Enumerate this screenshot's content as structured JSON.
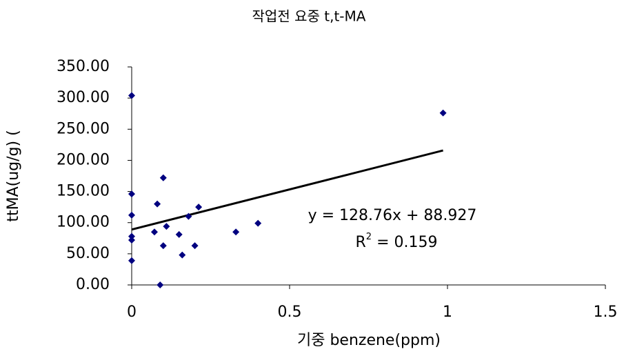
{
  "chart_data": {
    "type": "scatter",
    "title": "작업전 요중 t,t-MA",
    "x_label": "기중  benzene(ppm)",
    "y_label": "ttMA(ug/g) (",
    "series": [
      {
        "color": "#000080",
        "x": [
          0,
          0.986,
          0,
          0.1,
          0,
          0.081,
          0.212,
          0.18,
          0.11,
          0.072,
          0.15,
          0,
          0,
          0.1,
          0.2,
          0.16,
          0,
          0.09,
          0.33,
          0.4
        ],
        "values": [
          304,
          276,
          146,
          172,
          112,
          130,
          125,
          110,
          94,
          85,
          81,
          78,
          72,
          63,
          63,
          48,
          39,
          0,
          85,
          99
        ]
      }
    ],
    "trendline": {
      "slope": 128.76,
      "intercept": 88.927,
      "color": "#000000",
      "equation": "y = 128.76x + 88.927",
      "r2_label": {
        "base": "R",
        "sup": "2",
        "rest": " = 0.159"
      }
    },
    "xlim": [
      0,
      1.5
    ],
    "xticks": [
      0,
      0.5,
      1,
      1.5
    ],
    "ylim": [
      0,
      350
    ],
    "yticks": [
      {
        "value": 0,
        "label": "0.00"
      },
      {
        "value": 50,
        "label": "50.00"
      },
      {
        "value": 100,
        "label": "100.00"
      },
      {
        "value": 150,
        "label": "150.00"
      },
      {
        "value": 200,
        "label": "200.00"
      },
      {
        "value": 250,
        "label": "250.00"
      },
      {
        "value": 300,
        "label": "300.00"
      },
      {
        "value": 350,
        "label": "350.00"
      }
    ],
    "grid": false
  }
}
